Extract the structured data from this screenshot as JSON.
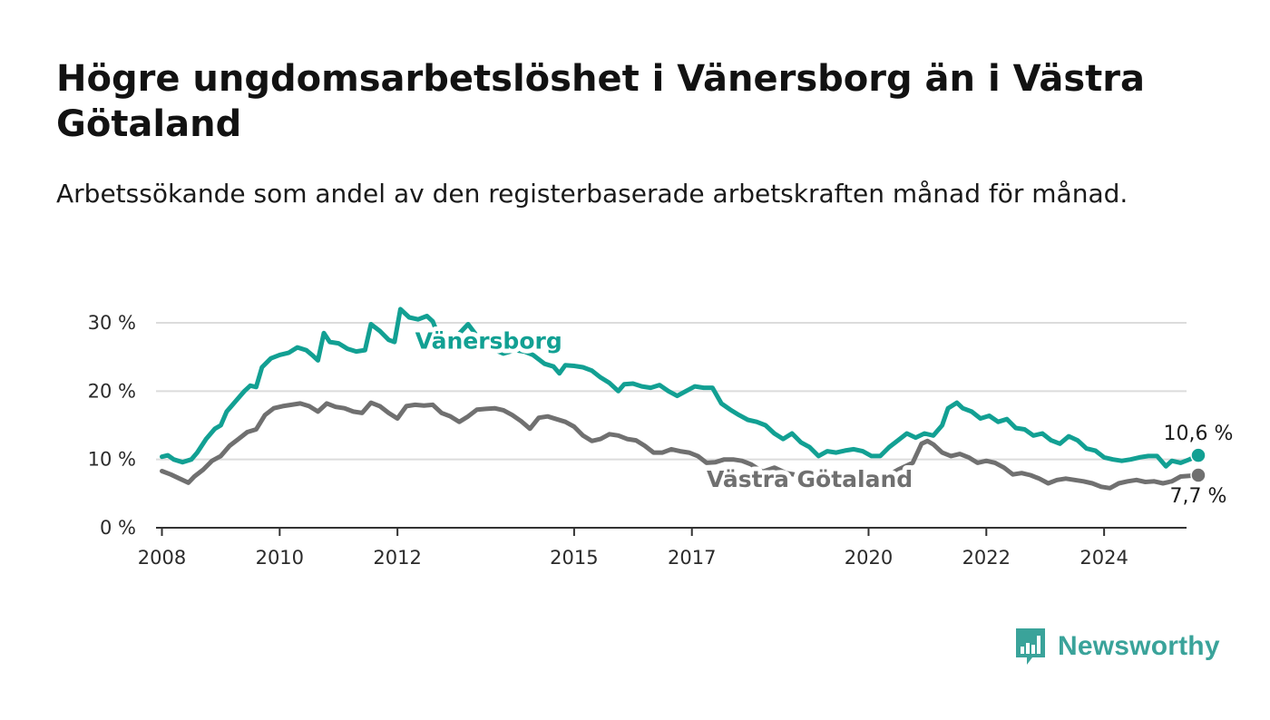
{
  "header": {
    "title": "Högre ungdomsarbetslöshet i Vänersborg än i Västra Götaland",
    "subtitle": "Arbetssökande som andel av den registerbaserade arbetskraften månad för månad."
  },
  "logo": {
    "text": "Newsworthy",
    "icon": "bar-chart-speech-bubble-icon",
    "color": "#3aa39a"
  },
  "chart_data": {
    "type": "line",
    "title": "Högre ungdomsarbetslöshet i Vänersborg än i Västra Götaland",
    "subtitle": "Arbetssökande som andel av den registerbaserade arbetskraften månad för månad.",
    "xlabel": "",
    "ylabel": "",
    "xlim": [
      2007.9,
      2025.4
    ],
    "ylim": [
      0,
      30
    ],
    "grid": true,
    "x_ticks": [
      {
        "value": 2008,
        "label": "2008"
      },
      {
        "value": 2010,
        "label": "2010"
      },
      {
        "value": 2012,
        "label": "2012"
      },
      {
        "value": 2015,
        "label": "2015"
      },
      {
        "value": 2017,
        "label": "2017"
      },
      {
        "value": 2020,
        "label": "2020"
      },
      {
        "value": 2022,
        "label": "2022"
      },
      {
        "value": 2024,
        "label": "2024"
      }
    ],
    "y_ticks": [
      {
        "value": 0,
        "label": "0 %"
      },
      {
        "value": 10,
        "label": "10 %"
      },
      {
        "value": 20,
        "label": "20 %"
      },
      {
        "value": 30,
        "label": "30 %"
      }
    ],
    "series": [
      {
        "name": "Vänersborg",
        "color": "#12a093",
        "end_label": "10,6 %",
        "points": [
          [
            2008.0,
            10.4
          ],
          [
            2008.1,
            10.6
          ],
          [
            2008.2,
            10.0
          ],
          [
            2008.35,
            9.6
          ],
          [
            2008.5,
            10.0
          ],
          [
            2008.6,
            11.0
          ],
          [
            2008.75,
            13.0
          ],
          [
            2008.9,
            14.5
          ],
          [
            2009.0,
            15.0
          ],
          [
            2009.1,
            17.0
          ],
          [
            2009.25,
            18.5
          ],
          [
            2009.4,
            20.0
          ],
          [
            2009.5,
            20.8
          ],
          [
            2009.6,
            20.6
          ],
          [
            2009.7,
            23.5
          ],
          [
            2009.85,
            24.8
          ],
          [
            2010.0,
            25.3
          ],
          [
            2010.15,
            25.6
          ],
          [
            2010.3,
            26.4
          ],
          [
            2010.45,
            26.0
          ],
          [
            2010.55,
            25.3
          ],
          [
            2010.65,
            24.5
          ],
          [
            2010.75,
            28.5
          ],
          [
            2010.85,
            27.2
          ],
          [
            2011.0,
            27.0
          ],
          [
            2011.15,
            26.2
          ],
          [
            2011.3,
            25.8
          ],
          [
            2011.45,
            26.0
          ],
          [
            2011.55,
            29.8
          ],
          [
            2011.7,
            28.8
          ],
          [
            2011.85,
            27.5
          ],
          [
            2011.95,
            27.2
          ],
          [
            2012.05,
            32.0
          ],
          [
            2012.2,
            30.8
          ],
          [
            2012.35,
            30.5
          ],
          [
            2012.5,
            31.0
          ],
          [
            2012.6,
            30.2
          ],
          [
            2012.7,
            28.0
          ],
          [
            2012.85,
            27.5
          ],
          [
            2013.0,
            28.0
          ],
          [
            2013.2,
            29.8
          ],
          [
            2013.4,
            27.5
          ],
          [
            2013.6,
            26.2
          ],
          [
            2013.8,
            25.5
          ],
          [
            2014.0,
            26.0
          ],
          [
            2014.15,
            25.8
          ],
          [
            2014.3,
            25.3
          ],
          [
            2014.5,
            24.0
          ],
          [
            2014.65,
            23.6
          ],
          [
            2014.75,
            22.6
          ],
          [
            2014.85,
            23.8
          ],
          [
            2015.0,
            23.7
          ],
          [
            2015.15,
            23.5
          ],
          [
            2015.3,
            23.0
          ],
          [
            2015.45,
            22.0
          ],
          [
            2015.6,
            21.2
          ],
          [
            2015.75,
            20.0
          ],
          [
            2015.85,
            21.0
          ],
          [
            2016.0,
            21.1
          ],
          [
            2016.15,
            20.7
          ],
          [
            2016.3,
            20.5
          ],
          [
            2016.45,
            20.9
          ],
          [
            2016.6,
            20.0
          ],
          [
            2016.75,
            19.3
          ],
          [
            2016.9,
            20.0
          ],
          [
            2017.05,
            20.7
          ],
          [
            2017.2,
            20.5
          ],
          [
            2017.35,
            20.5
          ],
          [
            2017.5,
            18.2
          ],
          [
            2017.65,
            17.3
          ],
          [
            2017.8,
            16.5
          ],
          [
            2017.95,
            15.8
          ],
          [
            2018.1,
            15.5
          ],
          [
            2018.25,
            15.0
          ],
          [
            2018.4,
            13.8
          ],
          [
            2018.55,
            13.0
          ],
          [
            2018.7,
            13.8
          ],
          [
            2018.85,
            12.5
          ],
          [
            2019.0,
            11.8
          ],
          [
            2019.15,
            10.5
          ],
          [
            2019.3,
            11.2
          ],
          [
            2019.45,
            11.0
          ],
          [
            2019.6,
            11.3
          ],
          [
            2019.75,
            11.5
          ],
          [
            2019.9,
            11.2
          ],
          [
            2020.05,
            10.5
          ],
          [
            2020.2,
            10.5
          ],
          [
            2020.35,
            11.8
          ],
          [
            2020.5,
            12.8
          ],
          [
            2020.65,
            13.8
          ],
          [
            2020.8,
            13.2
          ],
          [
            2020.95,
            13.8
          ],
          [
            2021.1,
            13.5
          ],
          [
            2021.25,
            15.0
          ],
          [
            2021.35,
            17.5
          ],
          [
            2021.5,
            18.3
          ],
          [
            2021.6,
            17.5
          ],
          [
            2021.75,
            17.0
          ],
          [
            2021.9,
            16.0
          ],
          [
            2022.05,
            16.4
          ],
          [
            2022.2,
            15.5
          ],
          [
            2022.35,
            15.9
          ],
          [
            2022.5,
            14.6
          ],
          [
            2022.65,
            14.4
          ],
          [
            2022.8,
            13.5
          ],
          [
            2022.95,
            13.8
          ],
          [
            2023.1,
            12.8
          ],
          [
            2023.25,
            12.3
          ],
          [
            2023.4,
            13.4
          ],
          [
            2023.55,
            12.8
          ],
          [
            2023.7,
            11.6
          ],
          [
            2023.85,
            11.3
          ],
          [
            2024.0,
            10.3
          ],
          [
            2024.15,
            10.0
          ],
          [
            2024.3,
            9.8
          ],
          [
            2024.45,
            10.0
          ],
          [
            2024.6,
            10.3
          ],
          [
            2024.75,
            10.5
          ],
          [
            2024.9,
            10.5
          ],
          [
            2025.05,
            9.0
          ],
          [
            2025.15,
            9.8
          ],
          [
            2025.3,
            9.5
          ],
          [
            2025.45,
            10.0
          ],
          [
            2025.6,
            10.6
          ]
        ]
      },
      {
        "name": "Västra Götaland",
        "color": "#707070",
        "end_label": "7,7 %",
        "points": [
          [
            2008.0,
            8.3
          ],
          [
            2008.15,
            7.8
          ],
          [
            2008.3,
            7.2
          ],
          [
            2008.45,
            6.6
          ],
          [
            2008.55,
            7.5
          ],
          [
            2008.7,
            8.5
          ],
          [
            2008.85,
            9.8
          ],
          [
            2009.0,
            10.5
          ],
          [
            2009.15,
            12.0
          ],
          [
            2009.3,
            13.0
          ],
          [
            2009.45,
            14.0
          ],
          [
            2009.6,
            14.4
          ],
          [
            2009.75,
            16.5
          ],
          [
            2009.9,
            17.5
          ],
          [
            2010.05,
            17.8
          ],
          [
            2010.2,
            18.0
          ],
          [
            2010.35,
            18.2
          ],
          [
            2010.5,
            17.8
          ],
          [
            2010.65,
            17.0
          ],
          [
            2010.8,
            18.2
          ],
          [
            2010.95,
            17.7
          ],
          [
            2011.1,
            17.5
          ],
          [
            2011.25,
            17.0
          ],
          [
            2011.4,
            16.8
          ],
          [
            2011.55,
            18.3
          ],
          [
            2011.7,
            17.8
          ],
          [
            2011.85,
            16.8
          ],
          [
            2012.0,
            16.0
          ],
          [
            2012.15,
            17.8
          ],
          [
            2012.3,
            18.0
          ],
          [
            2012.45,
            17.9
          ],
          [
            2012.6,
            18.0
          ],
          [
            2012.75,
            16.8
          ],
          [
            2012.9,
            16.3
          ],
          [
            2013.05,
            15.5
          ],
          [
            2013.2,
            16.3
          ],
          [
            2013.35,
            17.3
          ],
          [
            2013.5,
            17.4
          ],
          [
            2013.65,
            17.5
          ],
          [
            2013.8,
            17.2
          ],
          [
            2013.95,
            16.5
          ],
          [
            2014.1,
            15.6
          ],
          [
            2014.25,
            14.5
          ],
          [
            2014.4,
            16.1
          ],
          [
            2014.55,
            16.3
          ],
          [
            2014.7,
            15.9
          ],
          [
            2014.85,
            15.5
          ],
          [
            2015.0,
            14.8
          ],
          [
            2015.15,
            13.5
          ],
          [
            2015.3,
            12.7
          ],
          [
            2015.45,
            13.0
          ],
          [
            2015.6,
            13.7
          ],
          [
            2015.75,
            13.5
          ],
          [
            2015.9,
            13.0
          ],
          [
            2016.05,
            12.8
          ],
          [
            2016.2,
            12.0
          ],
          [
            2016.35,
            11.0
          ],
          [
            2016.5,
            11.0
          ],
          [
            2016.65,
            11.5
          ],
          [
            2016.8,
            11.2
          ],
          [
            2016.95,
            11.0
          ],
          [
            2017.1,
            10.5
          ],
          [
            2017.25,
            9.5
          ],
          [
            2017.4,
            9.6
          ],
          [
            2017.55,
            10.0
          ],
          [
            2017.7,
            10.0
          ],
          [
            2017.85,
            9.8
          ],
          [
            2018.0,
            9.3
          ],
          [
            2018.2,
            8.2
          ],
          [
            2018.4,
            8.8
          ],
          [
            2018.6,
            8.0
          ],
          [
            2018.8,
            7.7
          ],
          [
            2019.0,
            7.4
          ],
          [
            2019.2,
            7.4
          ],
          [
            2019.4,
            7.3
          ],
          [
            2019.6,
            7.5
          ],
          [
            2019.8,
            7.2
          ],
          [
            2020.0,
            7.0
          ],
          [
            2020.25,
            7.3
          ],
          [
            2020.5,
            8.5
          ],
          [
            2020.75,
            9.5
          ],
          [
            2020.9,
            12.3
          ],
          [
            2021.0,
            12.7
          ],
          [
            2021.1,
            12.2
          ],
          [
            2021.25,
            11.0
          ],
          [
            2021.4,
            10.5
          ],
          [
            2021.55,
            10.8
          ],
          [
            2021.7,
            10.3
          ],
          [
            2021.85,
            9.5
          ],
          [
            2022.0,
            9.8
          ],
          [
            2022.15,
            9.5
          ],
          [
            2022.3,
            8.8
          ],
          [
            2022.45,
            7.8
          ],
          [
            2022.6,
            8.0
          ],
          [
            2022.75,
            7.7
          ],
          [
            2022.9,
            7.2
          ],
          [
            2023.05,
            6.5
          ],
          [
            2023.2,
            7.0
          ],
          [
            2023.35,
            7.2
          ],
          [
            2023.5,
            7.0
          ],
          [
            2023.65,
            6.8
          ],
          [
            2023.8,
            6.5
          ],
          [
            2023.95,
            6.0
          ],
          [
            2024.1,
            5.8
          ],
          [
            2024.25,
            6.5
          ],
          [
            2024.4,
            6.8
          ],
          [
            2024.55,
            7.0
          ],
          [
            2024.7,
            6.7
          ],
          [
            2024.85,
            6.8
          ],
          [
            2025.0,
            6.5
          ],
          [
            2025.15,
            6.8
          ],
          [
            2025.3,
            7.5
          ],
          [
            2025.45,
            7.6
          ],
          [
            2025.6,
            7.7
          ]
        ]
      }
    ]
  }
}
